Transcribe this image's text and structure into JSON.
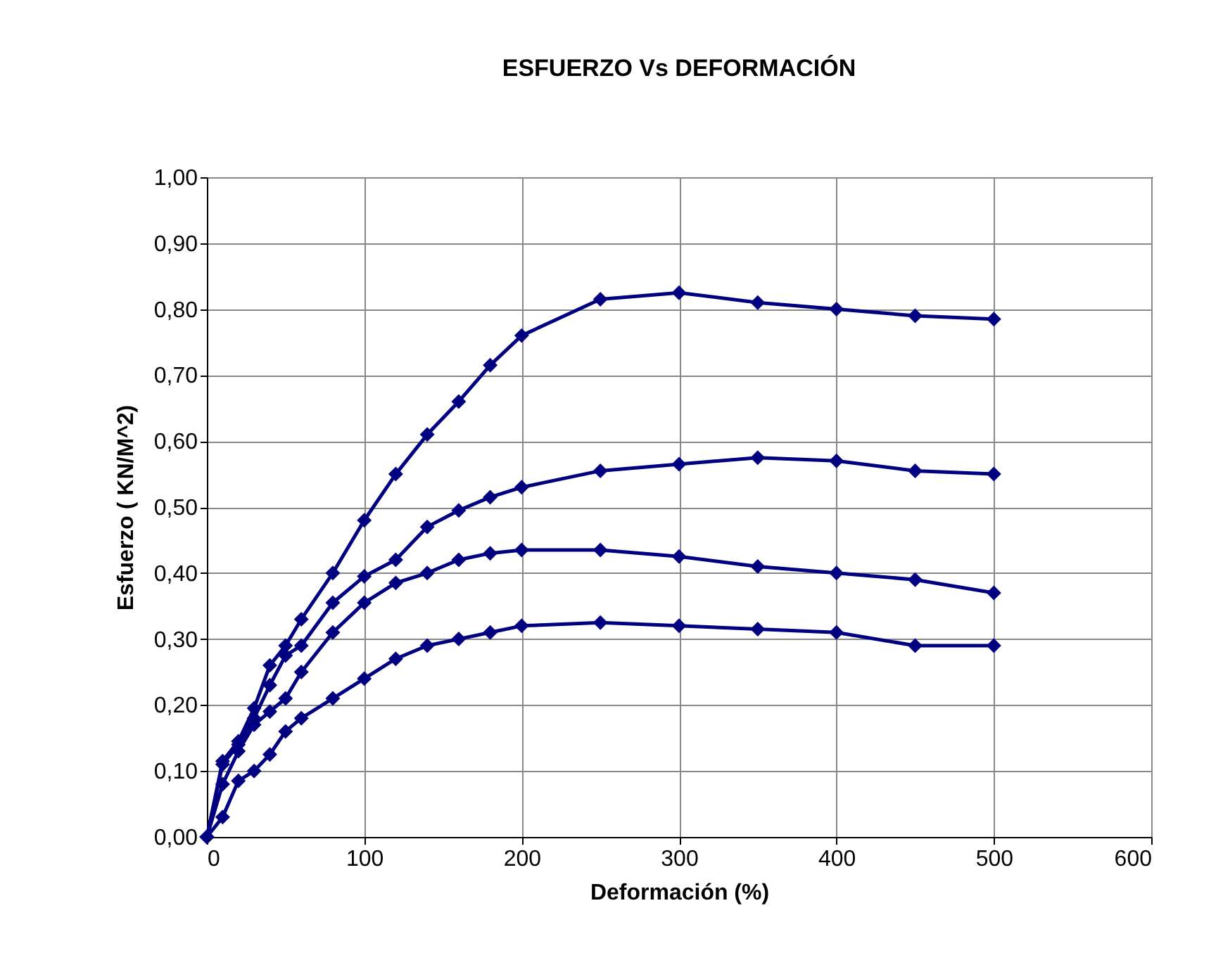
{
  "chart_data": {
    "type": "line",
    "title": "ESFUERZO Vs DEFORMACIÓN",
    "xlabel": "Deformación (%)",
    "ylabel": "Esfuerzo ( KN/M^2)",
    "x": [
      0,
      10,
      20,
      30,
      40,
      50,
      60,
      80,
      100,
      120,
      140,
      160,
      180,
      200,
      250,
      300,
      350,
      400,
      450,
      500
    ],
    "series": [
      {
        "color": "#000080",
        "values": [
          0,
          0.115,
          0.145,
          0.195,
          0.26,
          0.29,
          0.33,
          0.4,
          0.48,
          0.55,
          0.61,
          0.66,
          0.715,
          0.76,
          0.815,
          0.825,
          0.81,
          0.8,
          0.79,
          0.785
        ]
      },
      {
        "color": "#000080",
        "values": [
          0,
          0.11,
          0.14,
          0.18,
          0.23,
          0.275,
          0.29,
          0.355,
          0.395,
          0.42,
          0.47,
          0.495,
          0.515,
          0.53,
          0.555,
          0.565,
          0.575,
          0.57,
          0.555,
          0.55
        ]
      },
      {
        "color": "#000080",
        "values": [
          0,
          0.08,
          0.13,
          0.17,
          0.19,
          0.21,
          0.25,
          0.31,
          0.355,
          0.385,
          0.4,
          0.42,
          0.43,
          0.435,
          0.435,
          0.425,
          0.41,
          0.4,
          0.39,
          0.37
        ]
      },
      {
        "color": "#000080",
        "values": [
          0,
          0.03,
          0.085,
          0.1,
          0.125,
          0.16,
          0.18,
          0.21,
          0.24,
          0.27,
          0.29,
          0.3,
          0.31,
          0.32,
          0.325,
          0.32,
          0.315,
          0.31,
          0.29,
          0.29
        ]
      }
    ],
    "xlim": [
      0,
      600
    ],
    "xticks": [
      0,
      100,
      200,
      300,
      400,
      500,
      600
    ],
    "ylim": [
      0,
      1
    ],
    "yticks": [
      {
        "value": 0,
        "label": "0,00"
      },
      {
        "value": 0.1,
        "label": "0,10"
      },
      {
        "value": 0.2,
        "label": "0,20"
      },
      {
        "value": 0.3,
        "label": "0,30"
      },
      {
        "value": 0.4,
        "label": "0,40"
      },
      {
        "value": 0.5,
        "label": "0,50"
      },
      {
        "value": 0.6,
        "label": "0,60"
      },
      {
        "value": 0.7,
        "label": "0,70"
      },
      {
        "value": 0.8,
        "label": "0,80"
      },
      {
        "value": 0.9,
        "label": "0,90"
      },
      {
        "value": 1,
        "label": "1,00"
      }
    ],
    "grid": true,
    "marker": "diamond",
    "line_style": "solid"
  }
}
